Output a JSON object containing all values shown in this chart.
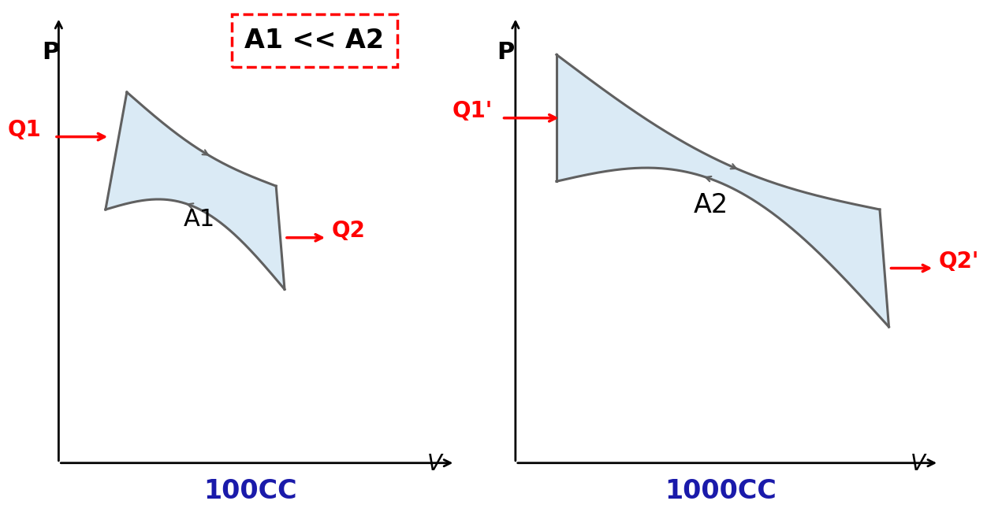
{
  "fig_width": 12.29,
  "fig_height": 7.01,
  "bg_color": "#ffffff",
  "fill_color": "#daeaf5",
  "curve_color": "#606060",
  "curve_lw": 2.2,
  "arrow_color": "#ff0000",
  "curve_arrow_color": "#606060",
  "label_color_red": "#ff0000",
  "label_color_blue": "#1a1aaa",
  "annotation_box_color": "#ff0000",
  "annotation_text": "A1 << A2",
  "left_cc_label": "100CC",
  "right_cc_label": "1000CC",
  "left_area_label": "A1",
  "right_area_label": "A2",
  "left_q1_label": "Q1",
  "left_q2_label": "Q2",
  "right_q1_label": "Q1'",
  "right_q2_label": "Q2'"
}
